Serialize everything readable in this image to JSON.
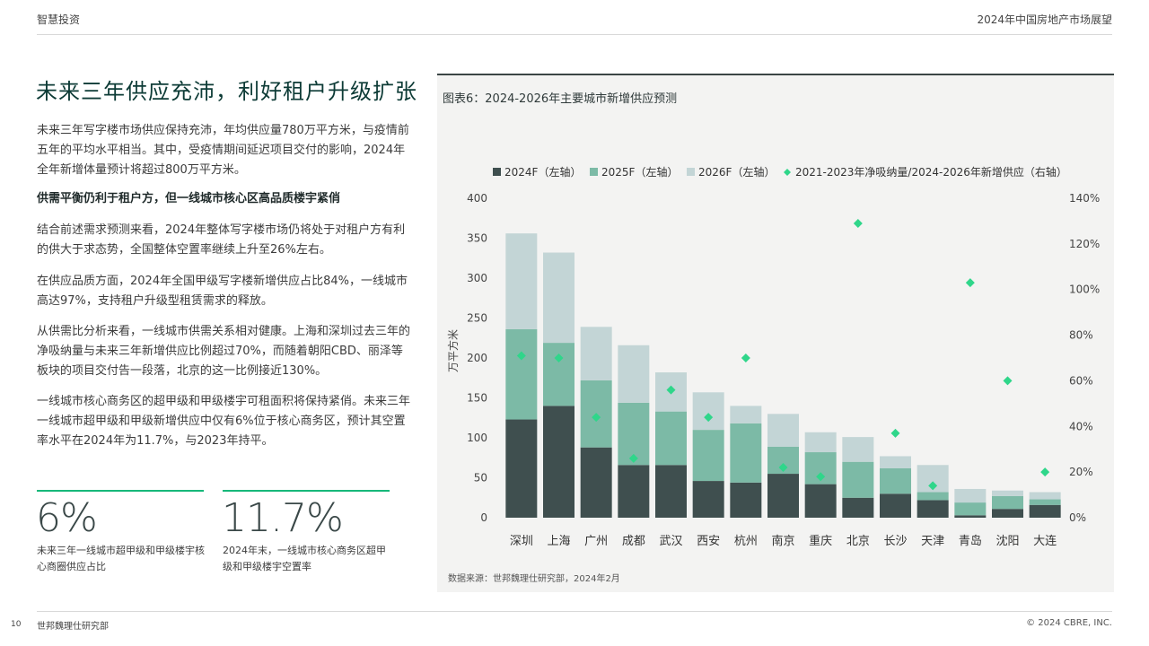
{
  "header": {
    "left": "智慧投资",
    "right": "2024年中国房地产市场展望"
  },
  "main": {
    "title": "未来三年供应充沛，利好租户升级扩张",
    "paragraphs": [
      "未来三年写字楼市场供应保持充沛，年均供应量780万平方米，与疫情前五年的平均水平相当。其中，受疫情期间延迟项目交付的影响，2024年全年新增体量预计将超过800万平方米。",
      "供需平衡仍利于租户方，但一线城市核心区高品质楼宇紧俏",
      "结合前述需求预测来看，2024年整体写字楼市场仍将处于对租户方有利的供大于求态势，全国整体空置率继续上升至26%左右。",
      "在供应品质方面，2024年全国甲级写字楼新增供应占比84%，一线城市高达97%，支持租户升级型租赁需求的释放。",
      "从供需比分析来看，一线城市供需关系相对健康。上海和深圳过去三年的净吸纳量与未来三年新增供应比例超过70%，而随着朝阳CBD、丽泽等板块的项目交付告一段落，北京的这一比例接近130%。",
      "一线城市核心商务区的超甲级和甲级楼宇可租面积将保持紧俏。未来三年一线城市超甲级和甲级新增供应中仅有6%位于核心商务区，预计其空置率水平在2024年为11.7%，与2023年持平。"
    ],
    "stats": [
      {
        "value": "6%",
        "label": "未来三年一线城市超甲级和甲级楼宇核心商圈供应占比"
      },
      {
        "value": "11.7%",
        "label": "2024年末，一线城市核心商务区超甲级和甲级楼宇空置率"
      }
    ]
  },
  "chart_title": "图表6：2024-2026年主要城市新增供应预测",
  "chart_source": "数据来源：世邦魏理仕研究部，2024年2月",
  "chart_data": {
    "type": "bar",
    "stacked": true,
    "categories": [
      "深圳",
      "上海",
      "广州",
      "成都",
      "武汉",
      "西安",
      "杭州",
      "南京",
      "重庆",
      "北京",
      "长沙",
      "天津",
      "青岛",
      "沈阳",
      "大连"
    ],
    "series": [
      {
        "name": "2024F（左轴）",
        "color": "#3f4f4f",
        "axis": "left",
        "values": [
          123,
          140,
          88,
          66,
          66,
          46,
          44,
          55,
          42,
          25,
          30,
          22,
          3,
          11,
          16
        ]
      },
      {
        "name": "2025F（左轴）",
        "color": "#7cbaa6",
        "axis": "left",
        "values": [
          113,
          79,
          84,
          78,
          67,
          64,
          74,
          34,
          40,
          45,
          32,
          10,
          16,
          16,
          7
        ]
      },
      {
        "name": "2026F（左轴）",
        "color": "#c3d5d6",
        "axis": "left",
        "values": [
          120,
          113,
          67,
          72,
          49,
          47,
          22,
          41,
          25,
          31,
          15,
          34,
          17,
          7,
          9
        ]
      },
      {
        "name": "2021-2023年净吸纳量/2024-2026年新增供应（右轴）",
        "color": "#2fd68a",
        "axis": "right",
        "marker": "diamond",
        "values": [
          71,
          70,
          44,
          26,
          56,
          44,
          70,
          22,
          18,
          129,
          37,
          14,
          103,
          60,
          20
        ]
      }
    ],
    "y_left": {
      "label": "万平方米",
      "min": 0,
      "max": 400,
      "ticks": [
        0,
        50,
        100,
        150,
        200,
        250,
        300,
        350,
        400
      ]
    },
    "y_right": {
      "min": 0,
      "max": 140,
      "ticks": [
        "0%",
        "20%",
        "40%",
        "60%",
        "80%",
        "100%",
        "120%",
        "140%"
      ],
      "tick_values": [
        0,
        20,
        40,
        60,
        80,
        100,
        120,
        140
      ]
    },
    "legend_position": "top",
    "grid": false
  },
  "footer": {
    "page": "10",
    "left": "世邦魏理仕研究部",
    "right": "© 2024 CBRE, INC."
  }
}
